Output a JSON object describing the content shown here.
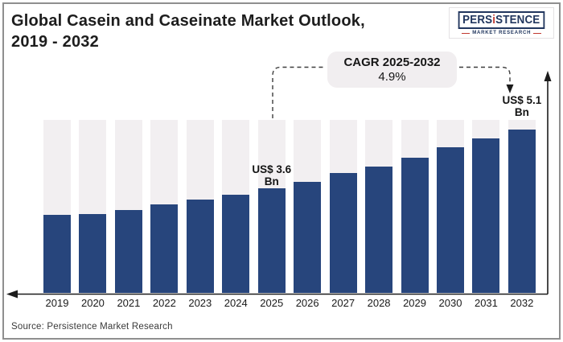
{
  "header": {
    "title_line1": "Global Casein and Caseinate Market Outlook,",
    "title_line2": "2019 - 2032"
  },
  "brand": {
    "name_pre": "PERS",
    "name_i": "i",
    "name_post": "STENCE",
    "tagline": "MARKET RESEARCH",
    "navy": "#21365e",
    "accent": "#c13a31"
  },
  "source_note": "Source: Persistence Market Research",
  "chart_data": {
    "type": "bar",
    "title": "Global Casein and Caseinate Market Outlook, 2019 - 2032",
    "unit": "US$ Bn",
    "categories": [
      2019,
      2020,
      2021,
      2022,
      2023,
      2024,
      2025,
      2026,
      2027,
      2028,
      2029,
      2030,
      2031,
      2032
    ],
    "values_estimated_usd_bn": [
      2.9,
      2.9,
      3.0,
      3.2,
      3.3,
      3.4,
      3.6,
      3.8,
      4.0,
      4.2,
      4.4,
      4.6,
      4.9,
      5.1
    ],
    "bar_height_pct": [
      45.1,
      45.6,
      47.9,
      51.2,
      54.0,
      56.7,
      60.5,
      64.2,
      69.3,
      73.0,
      78.1,
      84.2,
      89.3,
      94.4
    ],
    "labeled_points": [
      {
        "year": 2025,
        "line1": "US$ 3.6",
        "line2": "Bn",
        "placement": "above-bar"
      },
      {
        "year": 2032,
        "line1": "US$ 5.1",
        "line2": "Bn",
        "placement": "above-track"
      }
    ],
    "cagr_annotation": {
      "line1": "CAGR 2025-2032",
      "line2": "4.9%",
      "period": "2025-2032",
      "value_pct": 4.9
    },
    "colors": {
      "bar": "#27457c",
      "track": "#f2eff1"
    },
    "legend": "none",
    "grid": "off",
    "y_axis": {
      "tick_labels_visible": false,
      "arrow": "up-right-side"
    },
    "x_axis": {
      "tick_labels_visible": true,
      "arrow": "left"
    }
  }
}
